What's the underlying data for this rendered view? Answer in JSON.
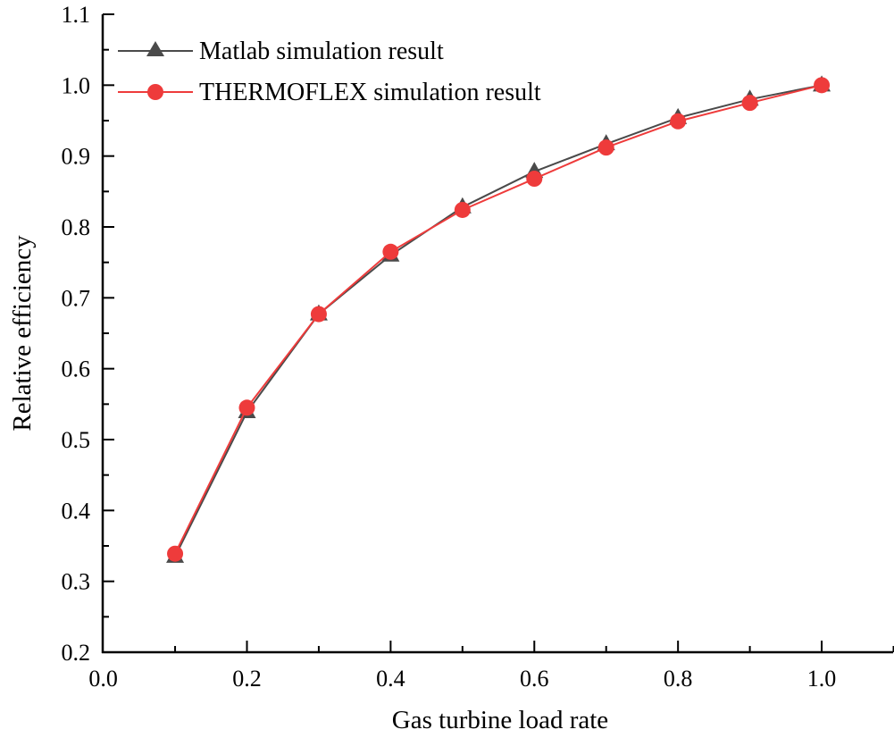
{
  "chart_data": {
    "type": "line",
    "title": "",
    "xlabel": "Gas turbine load rate",
    "ylabel": "Relative efficiency",
    "xlim": [
      0.0,
      1.1
    ],
    "ylim": [
      0.2,
      1.1
    ],
    "x_ticks": [
      "0.0",
      "0.2",
      "0.4",
      "0.6",
      "0.8",
      "1.0"
    ],
    "x_tick_values": [
      0.0,
      0.2,
      0.4,
      0.6,
      0.8,
      1.0
    ],
    "y_ticks": [
      "0.2",
      "0.3",
      "0.4",
      "0.5",
      "0.6",
      "0.7",
      "0.8",
      "0.9",
      "1.0",
      "1.1"
    ],
    "y_tick_values": [
      0.2,
      0.3,
      0.4,
      0.5,
      0.6,
      0.7,
      0.8,
      0.9,
      1.0,
      1.1
    ],
    "grid": false,
    "legend_position": "top-left",
    "x": [
      0.1,
      0.2,
      0.3,
      0.4,
      0.5,
      0.6,
      0.7,
      0.8,
      0.9,
      1.0
    ],
    "series": [
      {
        "name": "Matlab simulation result",
        "marker": "triangle",
        "color": "#4a4a4a",
        "values": [
          0.335,
          0.539,
          0.677,
          0.76,
          0.828,
          0.878,
          0.917,
          0.954,
          0.98,
          1.0
        ]
      },
      {
        "name": "THERMOFLEX simulation result",
        "marker": "circle",
        "color": "#ee3b3b",
        "values": [
          0.339,
          0.545,
          0.677,
          0.765,
          0.824,
          0.868,
          0.912,
          0.949,
          0.975,
          1.0
        ]
      }
    ]
  }
}
